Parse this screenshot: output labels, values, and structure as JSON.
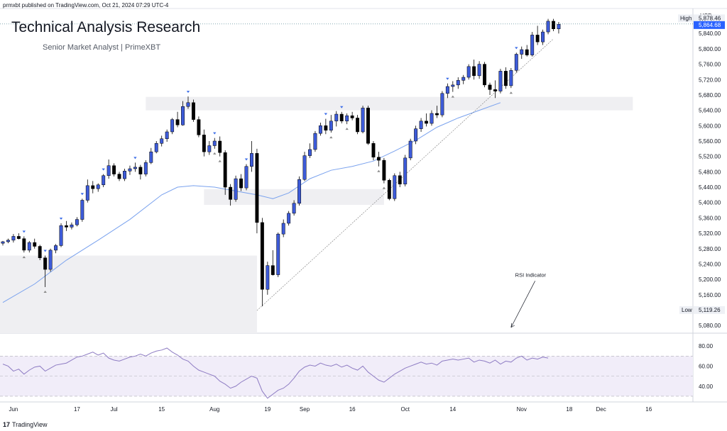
{
  "header": {
    "published": "prmxbt published on TradingView.com, Oct 21, 2024 07:29 UTC-4",
    "title": "Technical Analysis Research",
    "subtitle": "Senior Market Analyst | PrimeXBT"
  },
  "footer": {
    "brand": "TradingView"
  },
  "colors": {
    "up": "#3d5bd9",
    "down": "#000000",
    "ma": "#7aa2ee",
    "rsi": "#8e7cc3",
    "rsi_band": "#f1edf9",
    "zone": "#efeff2"
  },
  "chart_data": {
    "type": "candlestick",
    "currency": "USD",
    "price_ticks": [
      "5,080.00",
      "5,120.00",
      "5,160.00",
      "5,200.00",
      "5,240.00",
      "5,280.00",
      "5,320.00",
      "5,360.00",
      "5,400.00",
      "5,440.00",
      "5,480.00",
      "5,520.00",
      "5,560.00",
      "5,600.00",
      "5,640.00",
      "5,680.00",
      "5,720.00",
      "5,760.00",
      "5,800.00",
      "5,840.00"
    ],
    "price_tick_values": [
      5080,
      5120,
      5160,
      5200,
      5240,
      5280,
      5320,
      5360,
      5400,
      5440,
      5480,
      5520,
      5560,
      5600,
      5640,
      5680,
      5720,
      5760,
      5800,
      5840
    ],
    "ylim": [
      5060,
      5905
    ],
    "high": {
      "label": "High",
      "value_text": "5,878.46",
      "value": 5878.46
    },
    "last": {
      "value_text": "5,864.68",
      "value": 5864.68
    },
    "low": {
      "label": "Low",
      "value_text": "5,119.26",
      "value": 5119.26
    },
    "x_ticks": [
      {
        "label": "Jun",
        "i": 2
      },
      {
        "label": "17",
        "i": 14
      },
      {
        "label": "Jul",
        "i": 21
      },
      {
        "label": "15",
        "i": 30
      },
      {
        "label": "Aug",
        "i": 40
      },
      {
        "label": "19",
        "i": 50
      },
      {
        "label": "Sep",
        "i": 57
      },
      {
        "label": "16",
        "i": 66
      },
      {
        "label": "Oct",
        "i": 76
      },
      {
        "label": "14",
        "i": 85
      },
      {
        "label": "Nov",
        "i": 98
      },
      {
        "label": "18",
        "i": 107
      },
      {
        "label": "Dec",
        "i": 113
      },
      {
        "label": "16",
        "i": 122
      }
    ],
    "candles": [
      [
        5294,
        5300,
        5288,
        5298
      ],
      [
        5298,
        5306,
        5294,
        5302
      ],
      [
        5302,
        5318,
        5296,
        5312
      ],
      [
        5312,
        5320,
        5304,
        5306
      ],
      [
        5306,
        5312,
        5270,
        5276
      ],
      [
        5276,
        5300,
        5270,
        5296
      ],
      [
        5296,
        5306,
        5280,
        5286
      ],
      [
        5286,
        5290,
        5250,
        5256
      ],
      [
        5256,
        5262,
        5180,
        5226
      ],
      [
        5226,
        5280,
        5220,
        5276
      ],
      [
        5276,
        5292,
        5268,
        5288
      ],
      [
        5288,
        5346,
        5284,
        5340
      ],
      [
        5340,
        5352,
        5326,
        5336
      ],
      [
        5336,
        5348,
        5330,
        5342
      ],
      [
        5342,
        5362,
        5338,
        5356
      ],
      [
        5356,
        5410,
        5350,
        5406
      ],
      [
        5406,
        5460,
        5400,
        5444
      ],
      [
        5444,
        5456,
        5424,
        5436
      ],
      [
        5436,
        5450,
        5428,
        5446
      ],
      [
        5446,
        5474,
        5440,
        5470
      ],
      [
        5470,
        5512,
        5462,
        5496
      ],
      [
        5496,
        5502,
        5468,
        5474
      ],
      [
        5474,
        5480,
        5456,
        5462
      ],
      [
        5462,
        5488,
        5456,
        5482
      ],
      [
        5482,
        5496,
        5472,
        5488
      ],
      [
        5488,
        5504,
        5480,
        5492
      ],
      [
        5492,
        5498,
        5460,
        5474
      ],
      [
        5474,
        5510,
        5468,
        5504
      ],
      [
        5504,
        5542,
        5500,
        5532
      ],
      [
        5532,
        5560,
        5528,
        5554
      ],
      [
        5554,
        5574,
        5546,
        5566
      ],
      [
        5566,
        5590,
        5558,
        5584
      ],
      [
        5584,
        5620,
        5578,
        5616
      ],
      [
        5616,
        5636,
        5596,
        5602
      ],
      [
        5602,
        5664,
        5600,
        5650
      ],
      [
        5650,
        5676,
        5644,
        5660
      ],
      [
        5660,
        5668,
        5610,
        5616
      ],
      [
        5616,
        5624,
        5570,
        5576
      ],
      [
        5576,
        5590,
        5520,
        5532
      ],
      [
        5532,
        5560,
        5524,
        5548
      ],
      [
        5548,
        5568,
        5540,
        5560
      ],
      [
        5560,
        5572,
        5520,
        5530
      ],
      [
        5530,
        5536,
        5420,
        5440
      ],
      [
        5440,
        5448,
        5392,
        5408
      ],
      [
        5408,
        5470,
        5402,
        5462
      ],
      [
        5462,
        5474,
        5430,
        5438
      ],
      [
        5438,
        5500,
        5432,
        5494
      ],
      [
        5494,
        5560,
        5480,
        5528
      ],
      [
        5528,
        5540,
        5320,
        5348
      ],
      [
        5348,
        5360,
        5130,
        5174
      ],
      [
        5174,
        5246,
        5160,
        5236
      ],
      [
        5236,
        5276,
        5210,
        5212
      ],
      [
        5212,
        5322,
        5206,
        5318
      ],
      [
        5318,
        5356,
        5310,
        5346
      ],
      [
        5346,
        5378,
        5340,
        5372
      ],
      [
        5372,
        5406,
        5366,
        5398
      ],
      [
        5398,
        5468,
        5392,
        5460
      ],
      [
        5460,
        5532,
        5456,
        5522
      ],
      [
        5522,
        5554,
        5516,
        5538
      ],
      [
        5538,
        5586,
        5532,
        5580
      ],
      [
        5580,
        5608,
        5574,
        5600
      ],
      [
        5600,
        5618,
        5578,
        5588
      ],
      [
        5588,
        5628,
        5582,
        5612
      ],
      [
        5612,
        5638,
        5598,
        5630
      ],
      [
        5630,
        5636,
        5606,
        5612
      ],
      [
        5612,
        5632,
        5604,
        5626
      ],
      [
        5626,
        5636,
        5614,
        5620
      ],
      [
        5620,
        5628,
        5578,
        5584
      ],
      [
        5584,
        5652,
        5580,
        5646
      ],
      [
        5646,
        5652,
        5550,
        5554
      ],
      [
        5554,
        5560,
        5510,
        5518
      ],
      [
        5518,
        5532,
        5494,
        5510
      ],
      [
        5510,
        5516,
        5450,
        5458
      ],
      [
        5458,
        5462,
        5406,
        5410
      ],
      [
        5410,
        5476,
        5404,
        5470
      ],
      [
        5470,
        5480,
        5440,
        5448
      ],
      [
        5448,
        5524,
        5442,
        5516
      ],
      [
        5516,
        5566,
        5510,
        5560
      ],
      [
        5560,
        5600,
        5552,
        5592
      ],
      [
        5592,
        5620,
        5584,
        5612
      ],
      [
        5612,
        5632,
        5598,
        5606
      ],
      [
        5606,
        5640,
        5600,
        5632
      ],
      [
        5632,
        5652,
        5620,
        5628
      ],
      [
        5628,
        5690,
        5622,
        5684
      ],
      [
        5684,
        5710,
        5672,
        5702
      ],
      [
        5702,
        5716,
        5688,
        5706
      ],
      [
        5706,
        5726,
        5696,
        5718
      ],
      [
        5718,
        5732,
        5708,
        5726
      ],
      [
        5726,
        5760,
        5720,
        5754
      ],
      [
        5754,
        5772,
        5720,
        5730
      ],
      [
        5730,
        5768,
        5722,
        5760
      ],
      [
        5760,
        5766,
        5700,
        5706
      ],
      [
        5706,
        5712,
        5680,
        5694
      ],
      [
        5694,
        5718,
        5672,
        5690
      ],
      [
        5690,
        5748,
        5684,
        5742
      ],
      [
        5742,
        5752,
        5696,
        5704
      ],
      [
        5704,
        5750,
        5698,
        5744
      ],
      [
        5744,
        5790,
        5738,
        5786
      ],
      [
        5786,
        5806,
        5774,
        5798
      ],
      [
        5798,
        5810,
        5780,
        5784
      ],
      [
        5784,
        5844,
        5780,
        5836
      ],
      [
        5836,
        5860,
        5810,
        5818
      ],
      [
        5818,
        5850,
        5810,
        5844
      ],
      [
        5844,
        5878,
        5838,
        5872
      ],
      [
        5872,
        5878,
        5846,
        5852
      ],
      [
        5852,
        5870,
        5840,
        5864
      ]
    ],
    "x_last_index": 127,
    "ma_points": [
      [
        0,
        5140
      ],
      [
        6,
        5188
      ],
      [
        12,
        5250
      ],
      [
        18,
        5302
      ],
      [
        24,
        5356
      ],
      [
        30,
        5420
      ],
      [
        33,
        5440
      ],
      [
        36,
        5444
      ],
      [
        40,
        5440
      ],
      [
        44,
        5430
      ],
      [
        48,
        5420
      ],
      [
        51,
        5410
      ],
      [
        54,
        5425
      ],
      [
        58,
        5462
      ],
      [
        62,
        5484
      ],
      [
        66,
        5494
      ],
      [
        70,
        5508
      ],
      [
        74,
        5534
      ],
      [
        78,
        5562
      ],
      [
        82,
        5596
      ],
      [
        86,
        5620
      ],
      [
        90,
        5640
      ],
      [
        94,
        5660
      ]
    ],
    "trendline": [
      [
        48,
        5119
      ],
      [
        104,
        5826
      ]
    ],
    "zones": [
      {
        "i0": 27,
        "i1": 119,
        "y0": 5640,
        "y1": 5675
      },
      {
        "i0": 38,
        "i1": 72,
        "y0": 5394,
        "y1": 5435
      },
      {
        "i0": -1,
        "i1": 48,
        "y0": 5060,
        "y1": 5262
      }
    ],
    "markers_up": [
      4,
      8,
      11,
      15,
      19,
      25,
      35,
      40,
      46,
      61,
      64,
      84,
      97
    ],
    "markers_down": [
      4,
      8,
      40,
      41,
      62,
      65,
      71,
      72,
      85,
      96
    ],
    "annotation": {
      "text": "RSI Indicator",
      "arrow_from_i": 100,
      "arrow_from_y": 5196,
      "arrow_to_i": 96,
      "arrow_to_y": 5075
    },
    "rsi": {
      "ticks": [
        "80.00",
        "60.00",
        "40.00"
      ],
      "tick_values": [
        80,
        60,
        40
      ],
      "ylim": [
        25,
        90
      ],
      "band": [
        30,
        70
      ],
      "values": [
        62,
        60,
        55,
        57,
        52,
        56,
        59,
        60,
        55,
        58,
        61,
        62,
        63,
        66,
        69,
        70,
        72,
        74,
        71,
        73,
        68,
        66,
        65,
        67,
        69,
        70,
        72,
        70,
        73,
        75,
        76,
        78,
        74,
        71,
        67,
        65,
        60,
        56,
        54,
        52,
        50,
        45,
        42,
        38,
        40,
        44,
        47,
        50,
        48,
        35,
        28,
        32,
        36,
        38,
        42,
        48,
        55,
        59,
        61,
        60,
        63,
        61,
        60,
        62,
        59,
        61,
        58,
        56,
        60,
        54,
        50,
        46,
        44,
        48,
        52,
        55,
        58,
        60,
        62,
        64,
        62,
        63,
        61,
        65,
        66,
        67,
        66,
        67,
        68,
        64,
        66,
        65,
        63,
        66,
        62,
        65,
        64,
        68,
        70,
        66,
        68,
        67,
        69,
        68
      ]
    }
  }
}
